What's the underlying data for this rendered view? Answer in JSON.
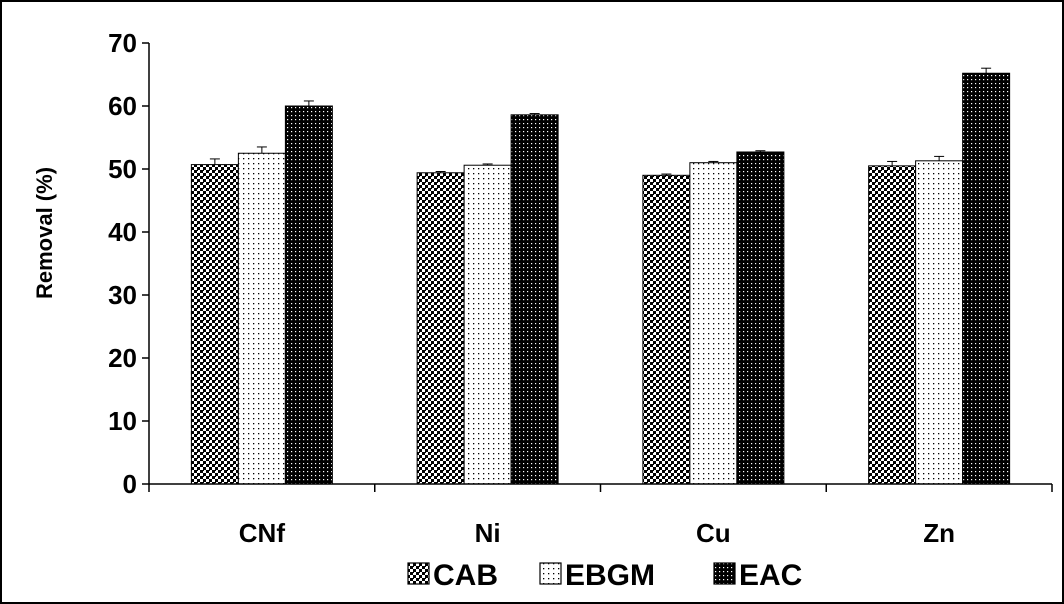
{
  "chart_data": {
    "type": "bar",
    "ylabel": "Removal (%)",
    "xlabel": "",
    "ylim": [
      0,
      70
    ],
    "yticks": [
      0,
      10,
      20,
      30,
      40,
      50,
      60,
      70
    ],
    "categories": [
      "CNf",
      "Ni",
      "Cu",
      "Zn"
    ],
    "series": [
      {
        "name": "CAB",
        "pattern": "checker",
        "values": [
          50.7,
          49.4,
          49.0,
          50.5
        ],
        "errors": [
          0.9,
          0.2,
          0.2,
          0.7
        ]
      },
      {
        "name": "EBGM",
        "pattern": "dots",
        "values": [
          52.5,
          50.6,
          51.0,
          51.3
        ],
        "errors": [
          1.0,
          0.2,
          0.2,
          0.7
        ]
      },
      {
        "name": "EAC",
        "pattern": "dense",
        "values": [
          60.0,
          58.6,
          52.7,
          65.2
        ],
        "errors": [
          0.8,
          0.2,
          0.2,
          0.8
        ]
      }
    ],
    "grid": false,
    "legend_position": "bottom",
    "colors": {
      "axis": "#000000",
      "bar_fill": "#000000",
      "background": "#ffffff"
    }
  }
}
